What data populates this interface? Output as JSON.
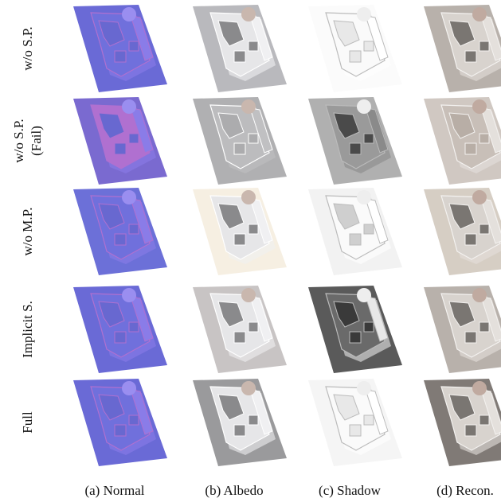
{
  "rows": [
    [
      "w/o S.P."
    ],
    [
      "w/o S.P.",
      "(Fail)"
    ],
    [
      "w/o M.P."
    ],
    [
      "Implicit S."
    ],
    [
      "Full"
    ]
  ],
  "columns": [
    "(a) Normal",
    "(b) Albedo",
    "(c) Shadow",
    "(d) Recon."
  ]
}
